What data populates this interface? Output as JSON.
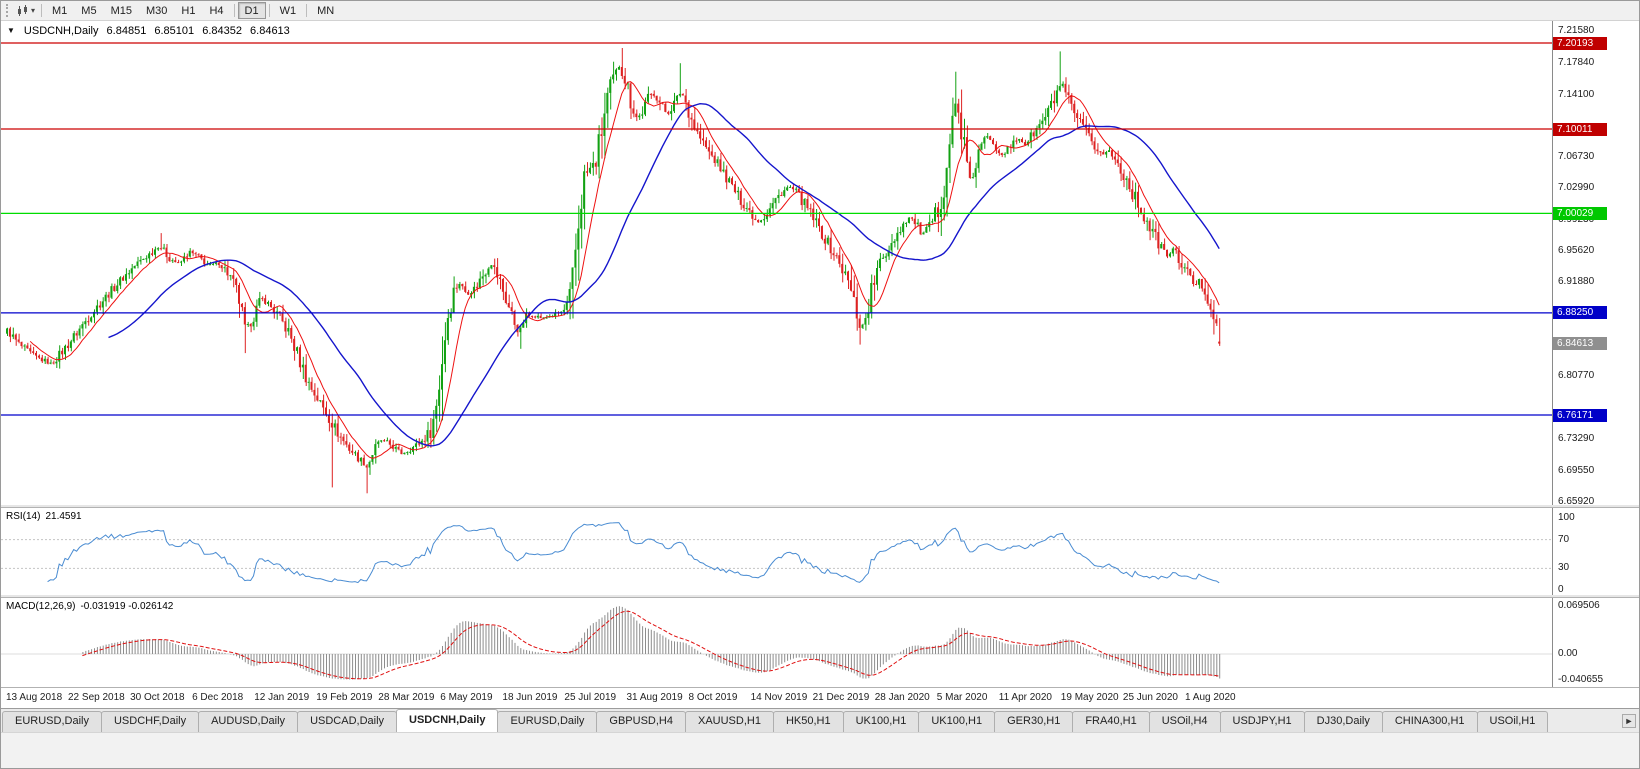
{
  "icons": {
    "symbol_dropdown": "▼",
    "caret_down": "▾",
    "tab_scroll_right": "►"
  },
  "toolbar": {
    "timeframes": [
      {
        "label": "M1",
        "active": false
      },
      {
        "label": "M5",
        "active": false
      },
      {
        "label": "M15",
        "active": false
      },
      {
        "label": "M30",
        "active": false
      },
      {
        "label": "H1",
        "active": false
      },
      {
        "label": "H4",
        "active": false
      },
      {
        "label": "D1",
        "active": true
      },
      {
        "label": "W1",
        "active": false
      },
      {
        "label": "MN",
        "active": false
      }
    ]
  },
  "chart_header": {
    "symbol": "USDCNH,Daily",
    "open": "6.84851",
    "high": "6.85101",
    "low": "6.84352",
    "close": "6.84613"
  },
  "price_axis": {
    "ticks": [
      "7.21580",
      "7.17840",
      "7.14100",
      "7.06730",
      "7.02990",
      "6.99230",
      "6.95620",
      "6.91880",
      "6.80770",
      "6.73290",
      "6.69550",
      "6.65920"
    ],
    "badges": [
      {
        "value": "7.20193",
        "bg": "#C00000",
        "fg": "#FFFFFF"
      },
      {
        "value": "7.10011",
        "bg": "#C00000",
        "fg": "#FFFFFF"
      },
      {
        "value": "7.00029",
        "bg": "#00C800",
        "fg": "#FFFFFF"
      },
      {
        "value": "6.88250",
        "bg": "#0000C8",
        "fg": "#FFFFFF"
      },
      {
        "value": "6.84613",
        "bg": "#8F8F8F",
        "fg": "#FFFFFF"
      },
      {
        "value": "6.76171",
        "bg": "#0000C8",
        "fg": "#FFFFFF"
      }
    ]
  },
  "chart_data": {
    "type": "candlestick",
    "title": "USDCNH,Daily",
    "ylim": [
      6.6552,
      7.22796
    ],
    "up_color": "#12A112",
    "down_color": "#DD2222",
    "ma_fast": {
      "period": 9,
      "color": "#EE1111"
    },
    "ma_slow": {
      "period": 36,
      "color": "#1515CC"
    },
    "hlines": [
      {
        "value": 7.20193,
        "color": "#CC0000"
      },
      {
        "value": 7.10011,
        "color": "#CC0000"
      },
      {
        "value": 7.00029,
        "color": "#00DD00"
      },
      {
        "value": 6.8825,
        "color": "#0000CC"
      },
      {
        "value": 6.76171,
        "color": "#0000CC"
      }
    ],
    "date_labels": [
      "13 Aug 2018",
      "22 Sep 2018",
      "30 Oct 2018",
      "6 Dec 2018",
      "12 Jan 2019",
      "19 Feb 2019",
      "28 Mar 2019",
      "6 May 2019",
      "18 Jun 2019",
      "25 Jul 2019",
      "31 Aug 2019",
      "8 Oct 2019",
      "14 Nov 2019",
      "21 Dec 2019",
      "28 Jan 2020",
      "5 Mar 2020",
      "11 Apr 2020",
      "19 May 2020",
      "25 Jun 2020",
      "1 Aug 2020"
    ],
    "price_path": [
      [
        6,
        6.862
      ],
      [
        18,
        6.845
      ],
      [
        32,
        6.832
      ],
      [
        50,
        6.822
      ],
      [
        62,
        6.838
      ],
      [
        75,
        6.858
      ],
      [
        90,
        6.882
      ],
      [
        105,
        6.902
      ],
      [
        120,
        6.922
      ],
      [
        135,
        6.94
      ],
      [
        148,
        6.952
      ],
      [
        158,
        6.962
      ],
      [
        168,
        6.948
      ],
      [
        178,
        6.94
      ],
      [
        188,
        6.955
      ],
      [
        198,
        6.948
      ],
      [
        208,
        6.938
      ],
      [
        218,
        6.942
      ],
      [
        228,
        6.928
      ],
      [
        238,
        6.898
      ],
      [
        244,
        6.862
      ],
      [
        252,
        6.878
      ],
      [
        260,
        6.9
      ],
      [
        268,
        6.892
      ],
      [
        278,
        6.878
      ],
      [
        288,
        6.858
      ],
      [
        298,
        6.828
      ],
      [
        308,
        6.798
      ],
      [
        318,
        6.778
      ],
      [
        328,
        6.758
      ],
      [
        338,
        6.738
      ],
      [
        348,
        6.722
      ],
      [
        358,
        6.71
      ],
      [
        366,
        6.7
      ],
      [
        372,
        6.718
      ],
      [
        380,
        6.732
      ],
      [
        390,
        6.726
      ],
      [
        400,
        6.716
      ],
      [
        410,
        6.722
      ],
      [
        420,
        6.73
      ],
      [
        428,
        6.74
      ],
      [
        434,
        6.762
      ],
      [
        440,
        6.82
      ],
      [
        446,
        6.878
      ],
      [
        452,
        6.908
      ],
      [
        458,
        6.918
      ],
      [
        466,
        6.905
      ],
      [
        474,
        6.912
      ],
      [
        482,
        6.928
      ],
      [
        490,
        6.942
      ],
      [
        498,
        6.922
      ],
      [
        506,
        6.895
      ],
      [
        513,
        6.872
      ],
      [
        518,
        6.858
      ],
      [
        524,
        6.878
      ],
      [
        532,
        6.88
      ],
      [
        542,
        6.876
      ],
      [
        552,
        6.88
      ],
      [
        562,
        6.884
      ],
      [
        570,
        6.898
      ],
      [
        576,
        6.975
      ],
      [
        582,
        7.04
      ],
      [
        588,
        7.052
      ],
      [
        594,
        7.058
      ],
      [
        600,
        7.095
      ],
      [
        606,
        7.135
      ],
      [
        612,
        7.158
      ],
      [
        618,
        7.175
      ],
      [
        624,
        7.16
      ],
      [
        630,
        7.132
      ],
      [
        636,
        7.112
      ],
      [
        642,
        7.122
      ],
      [
        648,
        7.14
      ],
      [
        654,
        7.142
      ],
      [
        660,
        7.128
      ],
      [
        666,
        7.118
      ],
      [
        673,
        7.13
      ],
      [
        680,
        7.145
      ],
      [
        687,
        7.125
      ],
      [
        694,
        7.1
      ],
      [
        701,
        7.085
      ],
      [
        708,
        7.072
      ],
      [
        716,
        7.06
      ],
      [
        724,
        7.045
      ],
      [
        732,
        7.03
      ],
      [
        740,
        7.015
      ],
      [
        748,
        7.004
      ],
      [
        756,
        6.99
      ],
      [
        764,
        6.998
      ],
      [
        772,
        7.012
      ],
      [
        780,
        7.025
      ],
      [
        788,
        7.032
      ],
      [
        796,
        7.024
      ],
      [
        804,
        7.01
      ],
      [
        812,
        6.995
      ],
      [
        820,
        6.978
      ],
      [
        828,
        6.962
      ],
      [
        836,
        6.946
      ],
      [
        843,
        6.93
      ],
      [
        849,
        6.912
      ],
      [
        855,
        6.885
      ],
      [
        860,
        6.862
      ],
      [
        865,
        6.88
      ],
      [
        871,
        6.912
      ],
      [
        877,
        6.935
      ],
      [
        884,
        6.952
      ],
      [
        891,
        6.968
      ],
      [
        899,
        6.982
      ],
      [
        907,
        6.996
      ],
      [
        914,
        6.99
      ],
      [
        921,
        6.975
      ],
      [
        929,
        6.985
      ],
      [
        937,
        7.005
      ],
      [
        943,
        7.04
      ],
      [
        949,
        7.088
      ],
      [
        954,
        7.13
      ],
      [
        959,
        7.112
      ],
      [
        964,
        7.068
      ],
      [
        969,
        7.035
      ],
      [
        974,
        7.055
      ],
      [
        980,
        7.08
      ],
      [
        987,
        7.092
      ],
      [
        994,
        7.082
      ],
      [
        1001,
        7.07
      ],
      [
        1009,
        7.078
      ],
      [
        1017,
        7.09
      ],
      [
        1024,
        7.082
      ],
      [
        1031,
        7.093
      ],
      [
        1039,
        7.105
      ],
      [
        1047,
        7.12
      ],
      [
        1054,
        7.138
      ],
      [
        1060,
        7.155
      ],
      [
        1066,
        7.135
      ],
      [
        1072,
        7.12
      ],
      [
        1079,
        7.106
      ],
      [
        1086,
        7.093
      ],
      [
        1093,
        7.08
      ],
      [
        1101,
        7.07
      ],
      [
        1108,
        7.074
      ],
      [
        1115,
        7.062
      ],
      [
        1122,
        7.048
      ],
      [
        1130,
        7.028
      ],
      [
        1138,
        7.008
      ],
      [
        1145,
        6.992
      ],
      [
        1152,
        6.976
      ],
      [
        1159,
        6.962
      ],
      [
        1166,
        6.95
      ],
      [
        1172,
        6.958
      ],
      [
        1179,
        6.944
      ],
      [
        1186,
        6.93
      ],
      [
        1193,
        6.916
      ],
      [
        1199,
        6.92
      ],
      [
        1205,
        6.905
      ],
      [
        1211,
        6.888
      ],
      [
        1216,
        6.866
      ],
      [
        1221,
        6.846
      ]
    ],
    "wick_spikes": [
      {
        "x": 160,
        "high": 6.977
      },
      {
        "x": 620,
        "high": 7.196
      },
      {
        "x": 680,
        "high": 7.178
      },
      {
        "x": 955,
        "high": 7.168
      },
      {
        "x": 1058,
        "high": 7.192
      },
      {
        "x": 244,
        "low": 6.835
      },
      {
        "x": 330,
        "low": 6.676
      },
      {
        "x": 366,
        "low": 6.669
      },
      {
        "x": 518,
        "low": 6.84
      },
      {
        "x": 860,
        "low": 6.845
      },
      {
        "x": 1218,
        "low": 6.8435
      }
    ],
    "rsi": {
      "label_name": "RSI(14)",
      "label_value": "21.4591",
      "period": 14,
      "ticks": [
        100,
        70,
        30,
        0
      ],
      "levels": [
        70,
        30
      ],
      "color": "#4A8CD2"
    },
    "macd": {
      "label_name": "MACD(12,26,9)",
      "label_value": "-0.031919 -0.026142",
      "fast": 12,
      "slow": 26,
      "signal": 9,
      "ticks": [
        "0.069506",
        "0.00",
        "-0.040655"
      ],
      "tick_values": [
        0.069506,
        0.0,
        -0.040655
      ],
      "hist_color": "#8C8C8C",
      "signal_color": "#E01010"
    }
  },
  "tabbar": {
    "tabs": [
      {
        "label": "EURUSD,Daily",
        "active": false
      },
      {
        "label": "USDCHF,Daily",
        "active": false
      },
      {
        "label": "AUDUSD,Daily",
        "active": false
      },
      {
        "label": "USDCAD,Daily",
        "active": false
      },
      {
        "label": "USDCNH,Daily",
        "active": true
      },
      {
        "label": "EURUSD,Daily",
        "active": false
      },
      {
        "label": "GBPUSD,H4",
        "active": false
      },
      {
        "label": "XAUUSD,H1",
        "active": false
      },
      {
        "label": "HK50,H1",
        "active": false
      },
      {
        "label": "UK100,H1",
        "active": false
      },
      {
        "label": "UK100,H1",
        "active": false
      },
      {
        "label": "GER30,H1",
        "active": false
      },
      {
        "label": "FRA40,H1",
        "active": false
      },
      {
        "label": "USOil,H4",
        "active": false
      },
      {
        "label": "USDJPY,H1",
        "active": false
      },
      {
        "label": "DJ30,Daily",
        "active": false
      },
      {
        "label": "CHINA300,H1",
        "active": false
      },
      {
        "label": "USOil,H1",
        "active": false
      }
    ]
  }
}
